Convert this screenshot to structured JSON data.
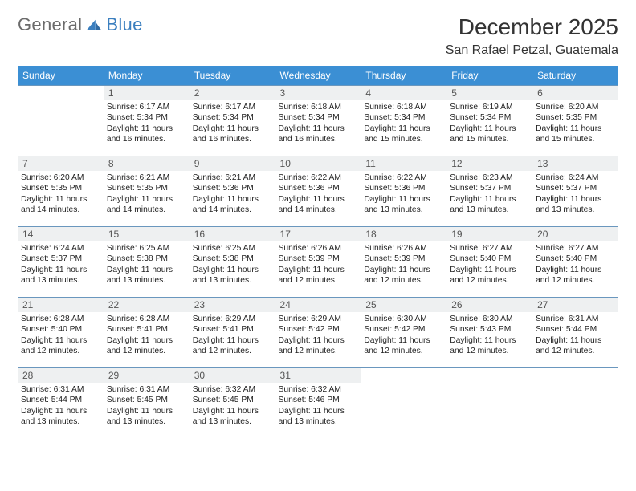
{
  "logo": {
    "gen": "General",
    "blue": "Blue"
  },
  "title": {
    "month": "December 2025",
    "location": "San Rafael Petzal, Guatemala"
  },
  "colors": {
    "header_bg": "#3b8fd4",
    "header_fg": "#ffffff",
    "row_border": "#6a97be",
    "daynum_bg": "#eef0f1",
    "daynum_fg": "#555555",
    "text": "#222222",
    "logo_gen": "#6b6b6b",
    "logo_blue": "#3b7fbf"
  },
  "days": [
    "Sunday",
    "Monday",
    "Tuesday",
    "Wednesday",
    "Thursday",
    "Friday",
    "Saturday"
  ],
  "weeks": [
    [
      {
        "empty": true
      },
      {
        "n": "1",
        "sr": "Sunrise: 6:17 AM",
        "ss": "Sunset: 5:34 PM",
        "d1": "Daylight: 11 hours",
        "d2": "and 16 minutes."
      },
      {
        "n": "2",
        "sr": "Sunrise: 6:17 AM",
        "ss": "Sunset: 5:34 PM",
        "d1": "Daylight: 11 hours",
        "d2": "and 16 minutes."
      },
      {
        "n": "3",
        "sr": "Sunrise: 6:18 AM",
        "ss": "Sunset: 5:34 PM",
        "d1": "Daylight: 11 hours",
        "d2": "and 16 minutes."
      },
      {
        "n": "4",
        "sr": "Sunrise: 6:18 AM",
        "ss": "Sunset: 5:34 PM",
        "d1": "Daylight: 11 hours",
        "d2": "and 15 minutes."
      },
      {
        "n": "5",
        "sr": "Sunrise: 6:19 AM",
        "ss": "Sunset: 5:34 PM",
        "d1": "Daylight: 11 hours",
        "d2": "and 15 minutes."
      },
      {
        "n": "6",
        "sr": "Sunrise: 6:20 AM",
        "ss": "Sunset: 5:35 PM",
        "d1": "Daylight: 11 hours",
        "d2": "and 15 minutes."
      }
    ],
    [
      {
        "n": "7",
        "sr": "Sunrise: 6:20 AM",
        "ss": "Sunset: 5:35 PM",
        "d1": "Daylight: 11 hours",
        "d2": "and 14 minutes."
      },
      {
        "n": "8",
        "sr": "Sunrise: 6:21 AM",
        "ss": "Sunset: 5:35 PM",
        "d1": "Daylight: 11 hours",
        "d2": "and 14 minutes."
      },
      {
        "n": "9",
        "sr": "Sunrise: 6:21 AM",
        "ss": "Sunset: 5:36 PM",
        "d1": "Daylight: 11 hours",
        "d2": "and 14 minutes."
      },
      {
        "n": "10",
        "sr": "Sunrise: 6:22 AM",
        "ss": "Sunset: 5:36 PM",
        "d1": "Daylight: 11 hours",
        "d2": "and 14 minutes."
      },
      {
        "n": "11",
        "sr": "Sunrise: 6:22 AM",
        "ss": "Sunset: 5:36 PM",
        "d1": "Daylight: 11 hours",
        "d2": "and 13 minutes."
      },
      {
        "n": "12",
        "sr": "Sunrise: 6:23 AM",
        "ss": "Sunset: 5:37 PM",
        "d1": "Daylight: 11 hours",
        "d2": "and 13 minutes."
      },
      {
        "n": "13",
        "sr": "Sunrise: 6:24 AM",
        "ss": "Sunset: 5:37 PM",
        "d1": "Daylight: 11 hours",
        "d2": "and 13 minutes."
      }
    ],
    [
      {
        "n": "14",
        "sr": "Sunrise: 6:24 AM",
        "ss": "Sunset: 5:37 PM",
        "d1": "Daylight: 11 hours",
        "d2": "and 13 minutes."
      },
      {
        "n": "15",
        "sr": "Sunrise: 6:25 AM",
        "ss": "Sunset: 5:38 PM",
        "d1": "Daylight: 11 hours",
        "d2": "and 13 minutes."
      },
      {
        "n": "16",
        "sr": "Sunrise: 6:25 AM",
        "ss": "Sunset: 5:38 PM",
        "d1": "Daylight: 11 hours",
        "d2": "and 13 minutes."
      },
      {
        "n": "17",
        "sr": "Sunrise: 6:26 AM",
        "ss": "Sunset: 5:39 PM",
        "d1": "Daylight: 11 hours",
        "d2": "and 12 minutes."
      },
      {
        "n": "18",
        "sr": "Sunrise: 6:26 AM",
        "ss": "Sunset: 5:39 PM",
        "d1": "Daylight: 11 hours",
        "d2": "and 12 minutes."
      },
      {
        "n": "19",
        "sr": "Sunrise: 6:27 AM",
        "ss": "Sunset: 5:40 PM",
        "d1": "Daylight: 11 hours",
        "d2": "and 12 minutes."
      },
      {
        "n": "20",
        "sr": "Sunrise: 6:27 AM",
        "ss": "Sunset: 5:40 PM",
        "d1": "Daylight: 11 hours",
        "d2": "and 12 minutes."
      }
    ],
    [
      {
        "n": "21",
        "sr": "Sunrise: 6:28 AM",
        "ss": "Sunset: 5:40 PM",
        "d1": "Daylight: 11 hours",
        "d2": "and 12 minutes."
      },
      {
        "n": "22",
        "sr": "Sunrise: 6:28 AM",
        "ss": "Sunset: 5:41 PM",
        "d1": "Daylight: 11 hours",
        "d2": "and 12 minutes."
      },
      {
        "n": "23",
        "sr": "Sunrise: 6:29 AM",
        "ss": "Sunset: 5:41 PM",
        "d1": "Daylight: 11 hours",
        "d2": "and 12 minutes."
      },
      {
        "n": "24",
        "sr": "Sunrise: 6:29 AM",
        "ss": "Sunset: 5:42 PM",
        "d1": "Daylight: 11 hours",
        "d2": "and 12 minutes."
      },
      {
        "n": "25",
        "sr": "Sunrise: 6:30 AM",
        "ss": "Sunset: 5:42 PM",
        "d1": "Daylight: 11 hours",
        "d2": "and 12 minutes."
      },
      {
        "n": "26",
        "sr": "Sunrise: 6:30 AM",
        "ss": "Sunset: 5:43 PM",
        "d1": "Daylight: 11 hours",
        "d2": "and 12 minutes."
      },
      {
        "n": "27",
        "sr": "Sunrise: 6:31 AM",
        "ss": "Sunset: 5:44 PM",
        "d1": "Daylight: 11 hours",
        "d2": "and 12 minutes."
      }
    ],
    [
      {
        "n": "28",
        "sr": "Sunrise: 6:31 AM",
        "ss": "Sunset: 5:44 PM",
        "d1": "Daylight: 11 hours",
        "d2": "and 13 minutes."
      },
      {
        "n": "29",
        "sr": "Sunrise: 6:31 AM",
        "ss": "Sunset: 5:45 PM",
        "d1": "Daylight: 11 hours",
        "d2": "and 13 minutes."
      },
      {
        "n": "30",
        "sr": "Sunrise: 6:32 AM",
        "ss": "Sunset: 5:45 PM",
        "d1": "Daylight: 11 hours",
        "d2": "and 13 minutes."
      },
      {
        "n": "31",
        "sr": "Sunrise: 6:32 AM",
        "ss": "Sunset: 5:46 PM",
        "d1": "Daylight: 11 hours",
        "d2": "and 13 minutes."
      },
      {
        "empty": true
      },
      {
        "empty": true
      },
      {
        "empty": true
      }
    ]
  ]
}
